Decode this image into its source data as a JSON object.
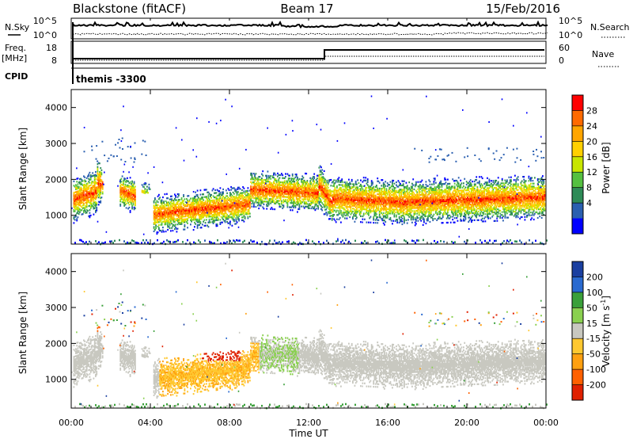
{
  "header": {
    "title": "Blackstone (fitACF)",
    "beam": "Beam 17",
    "date": "15/Feb/2016"
  },
  "aux_panels": {
    "nsky_label": "N.Sky",
    "nsearch_label": "N.Search",
    "nsky_ticks": [
      "10^5",
      "10^0"
    ],
    "nsearch_ticks": [
      "10^5",
      "10^0"
    ],
    "freq_label": "Freq.",
    "freq_unit": "[MHz]",
    "freq_ticks": [
      "18",
      "8"
    ],
    "nave_label": "Nave",
    "nave_ticks": [
      "60",
      "0"
    ],
    "cpid_label": "CPID",
    "cpid_value": "themis -3300"
  },
  "chart_data": [
    {
      "type": "heatmap",
      "name": "power",
      "ylabel": "Slant Range [km]",
      "yticks": [
        "4000",
        "3000",
        "2000",
        "1000"
      ],
      "ylim": [
        200,
        4500
      ],
      "xlim": [
        0,
        24
      ],
      "colorbar": {
        "label": "Power [dB]",
        "ticks": [
          "28",
          "24",
          "20",
          "16",
          "12",
          "8",
          "4"
        ],
        "colors": [
          "#ff0000",
          "#ff6a00",
          "#ffa500",
          "#ffd000",
          "#c8e600",
          "#55c040",
          "#2e8b57",
          "#2a5fb0",
          "#0000ff"
        ]
      }
    },
    {
      "type": "heatmap",
      "name": "velocity",
      "ylabel": "Slant Range [km]",
      "yticks": [
        "4000",
        "3000",
        "2000",
        "1000"
      ],
      "ylim": [
        200,
        4500
      ],
      "xlim": [
        0,
        24
      ],
      "xlabel": "Time UT",
      "xticks": [
        "00:00",
        "04:00",
        "08:00",
        "12:00",
        "16:00",
        "20:00",
        "00:00"
      ],
      "colorbar": {
        "label": "Velocity [m s",
        "label_sup": "-1",
        "label_end": "]",
        "ticks": [
          "200",
          "100",
          "50",
          "15",
          "-15",
          "-50",
          "-100",
          "-200"
        ],
        "colors": [
          "#1a3fa0",
          "#2a6ad0",
          "#3aa03a",
          "#8ad050",
          "#c8c8c0",
          "#ffc830",
          "#ffa010",
          "#ff6000",
          "#e02000"
        ]
      }
    }
  ]
}
